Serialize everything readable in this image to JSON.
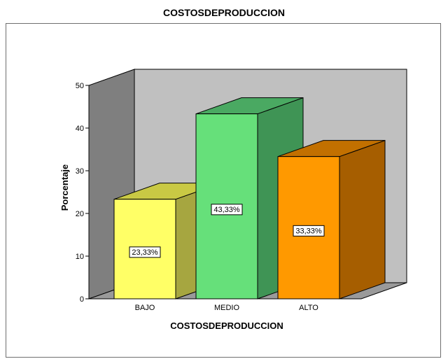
{
  "chart_data": {
    "type": "bar",
    "title": "COSTOSDEPRODUCCION",
    "xlabel": "COSTOSDEPRODUCCION",
    "ylabel": "Porcentaje",
    "categories": [
      "BAJO",
      "MEDIO",
      "ALTO"
    ],
    "values": [
      23.33,
      43.33,
      33.33
    ],
    "data_labels": [
      "23,33%",
      "43,33%",
      "33,33%"
    ],
    "ylim": [
      0,
      50
    ],
    "yticks": [
      "0",
      "10",
      "20",
      "30",
      "40",
      "50"
    ],
    "grid": false,
    "legend": "none",
    "style": "3d",
    "colors": {
      "front": [
        "#ffff66",
        "#66e07a",
        "#ff9900"
      ],
      "side": [
        "#a6a640",
        "#3f9455",
        "#a65e00"
      ],
      "top": [
        "#c9c944",
        "#4aa962",
        "#c27000"
      ],
      "back_wall": "#c0c0c0",
      "side_wall": "#7f7f7f",
      "floor": "#9a9a9a"
    }
  }
}
